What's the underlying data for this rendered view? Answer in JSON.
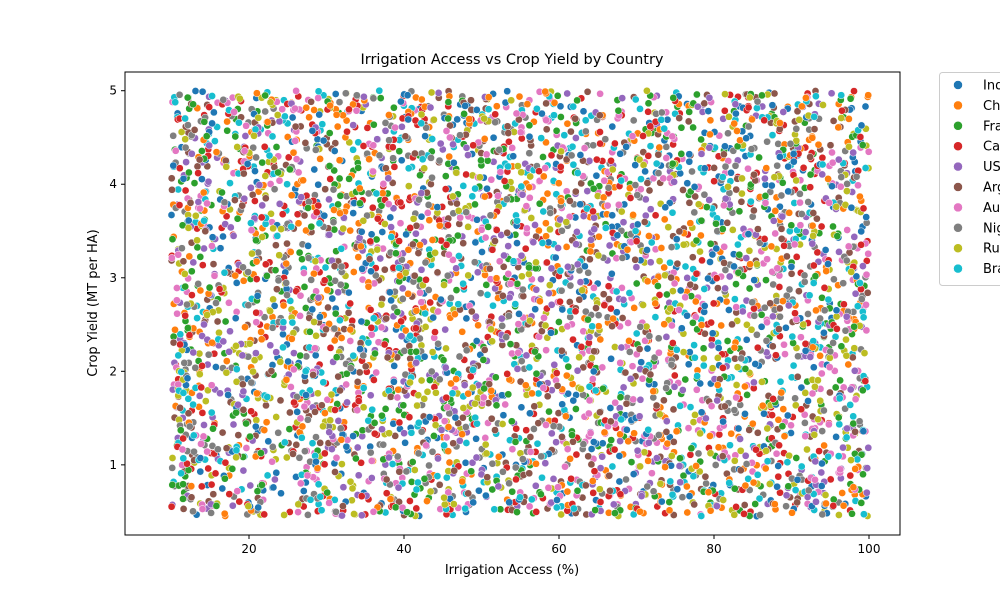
{
  "chart_data": {
    "type": "scatter",
    "title": "Irrigation Access vs Crop Yield by Country",
    "xlabel": "Irrigation Access (%)",
    "ylabel": "Crop Yield (MT per HA)",
    "xlim": [
      4.0,
      104.0
    ],
    "ylim": [
      0.25,
      5.2
    ],
    "xticks": [
      20,
      40,
      60,
      80,
      100
    ],
    "yticks": [
      1,
      2,
      3,
      4,
      5
    ],
    "grid": false,
    "legend_position": "outside-right",
    "point_distribution": {
      "x_range": [
        10,
        100
      ],
      "y_range": [
        0.45,
        5.0
      ],
      "points_per_series": 500
    },
    "series": [
      {
        "name": "Ind",
        "color": "#1f77b4"
      },
      {
        "name": "Ch",
        "color": "#ff7f0e"
      },
      {
        "name": "Fra",
        "color": "#2ca02c"
      },
      {
        "name": "Ca",
        "color": "#d62728"
      },
      {
        "name": "US",
        "color": "#9467bd"
      },
      {
        "name": "Arg",
        "color": "#8c564b"
      },
      {
        "name": "Au",
        "color": "#e377c2"
      },
      {
        "name": "Nig",
        "color": "#7f7f7f"
      },
      {
        "name": "Ru",
        "color": "#bcbd22"
      },
      {
        "name": "Bra",
        "color": "#17becf"
      }
    ]
  }
}
